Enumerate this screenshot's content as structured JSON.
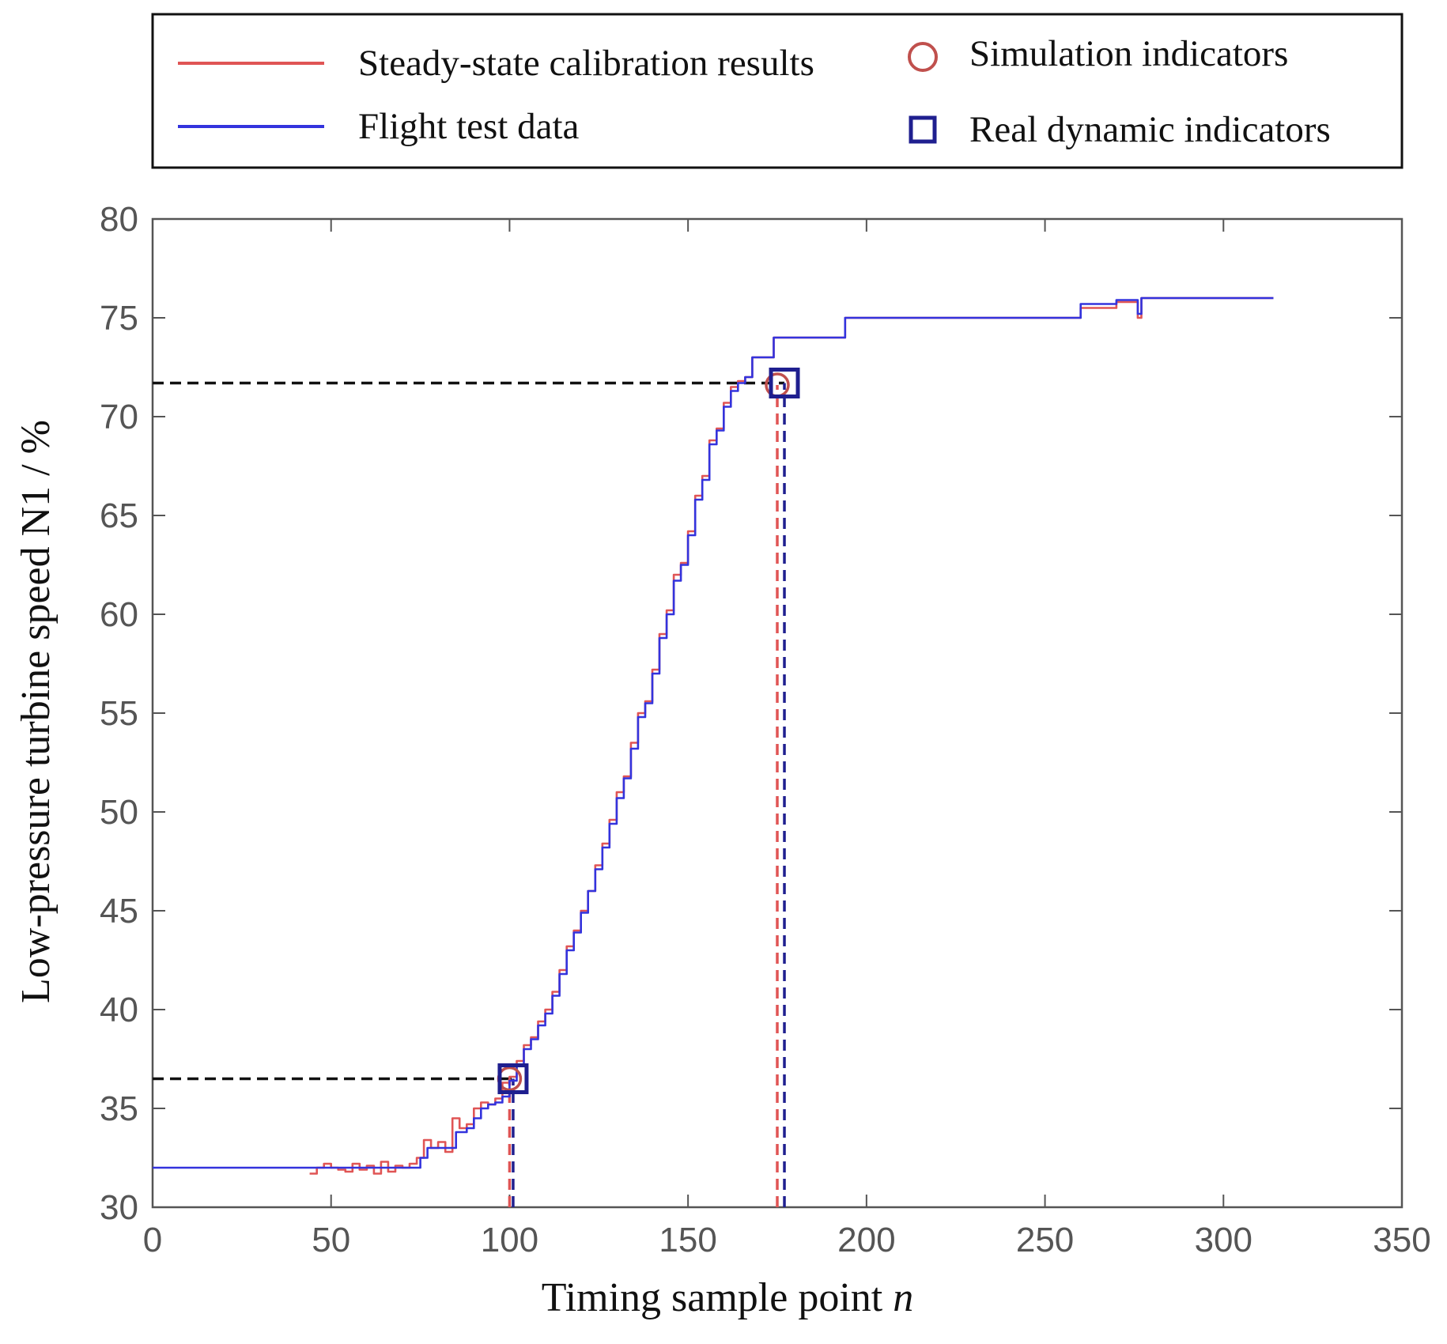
{
  "chart_data": {
    "type": "line",
    "title": "",
    "xlabel": "Timing sample point",
    "xlabel_var": "n",
    "ylabel": "Low-pressure turbine speed N1 / %",
    "xlim": [
      0,
      350
    ],
    "ylim": [
      30,
      80
    ],
    "xticks": [
      0,
      50,
      100,
      150,
      200,
      250,
      300,
      350
    ],
    "yticks": [
      30,
      35,
      40,
      45,
      50,
      55,
      60,
      65,
      70,
      75,
      80
    ],
    "xtick_labels": [
      "0",
      "50",
      "100",
      "150",
      "200",
      "250",
      "300",
      "350"
    ],
    "ytick_labels": [
      "30",
      "35",
      "40",
      "45",
      "50",
      "55",
      "60",
      "65",
      "70",
      "75",
      "80"
    ],
    "grid": false,
    "legend": {
      "placement": "top, outside plot",
      "entries": [
        {
          "label": "Steady-state calibration results",
          "marker": "line",
          "color": "#e05555"
        },
        {
          "label": "Flight test data",
          "marker": "line",
          "color": "#3333dd"
        },
        {
          "label": "Simulation indicators",
          "marker": "circle",
          "color": "#c0504d"
        },
        {
          "label": "Real dynamic indicators",
          "marker": "square",
          "color": "#1f1f8f"
        }
      ]
    },
    "series": [
      {
        "name": "Steady-state calibration results",
        "color": "#e05555",
        "x": [
          44,
          46,
          48,
          50,
          52,
          54,
          56,
          58,
          60,
          62,
          64,
          66,
          68,
          70,
          72,
          74,
          76,
          78,
          80,
          82,
          84,
          86,
          88,
          90,
          92,
          94,
          96,
          98,
          100,
          102,
          104,
          106,
          108,
          110,
          112,
          114,
          116,
          118,
          120,
          122,
          124,
          126,
          128,
          130,
          132,
          134,
          136,
          138,
          140,
          142,
          144,
          146,
          148,
          150,
          152,
          154,
          156,
          158,
          160,
          162,
          164,
          166,
          168,
          170,
          172,
          174,
          176,
          178,
          180,
          185,
          190,
          194,
          195,
          200,
          210,
          220,
          228,
          229,
          240,
          250,
          260,
          270,
          276,
          277,
          278,
          279,
          280,
          290,
          300,
          314
        ],
        "y": [
          31.7,
          32.0,
          32.2,
          32.0,
          31.9,
          31.8,
          32.2,
          31.9,
          32.1,
          31.7,
          32.3,
          31.8,
          32.1,
          32.0,
          32.2,
          32.5,
          33.4,
          33.0,
          33.3,
          32.8,
          34.5,
          34.0,
          34.2,
          35.0,
          35.3,
          35.2,
          35.5,
          36.3,
          36.6,
          37.4,
          38.2,
          38.6,
          39.4,
          40.0,
          40.9,
          42.0,
          43.2,
          44.0,
          45.0,
          46.0,
          47.3,
          48.4,
          49.6,
          51.0,
          51.8,
          53.5,
          55.0,
          55.6,
          57.2,
          59.0,
          60.2,
          62.0,
          62.6,
          64.2,
          66.0,
          67.0,
          68.8,
          69.4,
          70.7,
          71.5,
          71.8,
          72.0,
          73.0,
          73.0,
          73.0,
          74.0,
          74.0,
          74.0,
          74.0,
          74.0,
          74.0,
          75.0,
          75.0,
          75.0,
          75.0,
          75.0,
          75.0,
          75.0,
          75.0,
          75.0,
          75.5,
          75.8,
          75.0,
          76.0,
          76.0,
          76.0,
          76.0,
          76.0,
          76.0,
          76.0
        ]
      },
      {
        "name": "Flight test data",
        "color": "#3333dd",
        "x": [
          0,
          10,
          20,
          30,
          40,
          45,
          50,
          55,
          60,
          65,
          70,
          73,
          75,
          77,
          80,
          83,
          85,
          88,
          90,
          92,
          94,
          96,
          98,
          100,
          102,
          104,
          106,
          108,
          110,
          112,
          114,
          116,
          118,
          120,
          122,
          124,
          126,
          128,
          130,
          132,
          134,
          136,
          138,
          140,
          142,
          144,
          146,
          148,
          150,
          152,
          154,
          156,
          158,
          160,
          162,
          164,
          166,
          168,
          170,
          172,
          174,
          176,
          178,
          180,
          185,
          190,
          194,
          195,
          200,
          210,
          220,
          228,
          229,
          240,
          250,
          260,
          270,
          276,
          277,
          278,
          279,
          280,
          290,
          300,
          314
        ],
        "y": [
          32.0,
          32.0,
          32.0,
          32.0,
          32.0,
          32.0,
          32.0,
          32.0,
          32.0,
          32.0,
          32.0,
          32.0,
          32.5,
          33.0,
          33.0,
          33.0,
          33.8,
          34.0,
          34.5,
          35.0,
          35.2,
          35.3,
          35.6,
          36.4,
          37.2,
          38.0,
          38.5,
          39.2,
          39.8,
          40.7,
          41.8,
          43.0,
          43.9,
          44.9,
          46.0,
          47.1,
          48.2,
          49.4,
          50.7,
          51.7,
          53.2,
          54.8,
          55.5,
          57.0,
          58.8,
          60.0,
          61.7,
          62.5,
          64.0,
          65.8,
          66.8,
          68.6,
          69.3,
          70.5,
          71.3,
          71.7,
          72.0,
          73.0,
          73.0,
          73.0,
          74.0,
          74.0,
          74.0,
          74.0,
          74.0,
          74.0,
          75.0,
          75.0,
          75.0,
          75.0,
          75.0,
          75.0,
          75.0,
          75.0,
          75.0,
          75.7,
          75.9,
          75.2,
          76.0,
          76.0,
          76.0,
          76.0,
          76.0,
          76.0,
          76.0
        ]
      }
    ],
    "markers": [
      {
        "name": "Simulation indicators",
        "shape": "circle",
        "color": "#c0504d",
        "points": [
          [
            100,
            36.5
          ],
          [
            175,
            71.6
          ]
        ]
      },
      {
        "name": "Real dynamic indicators",
        "shape": "square",
        "color": "#1f1f8f",
        "points": [
          [
            101,
            36.5
          ],
          [
            177,
            71.7
          ]
        ]
      }
    ],
    "reference_lines": [
      {
        "type": "horizontal",
        "y": 36.5,
        "x_from": 0,
        "x_to": 101,
        "color": "#111111"
      },
      {
        "type": "horizontal",
        "y": 71.7,
        "x_from": 0,
        "x_to": 177,
        "color": "#111111"
      },
      {
        "type": "vertical",
        "x": 100,
        "y_from": 30,
        "y_to": 36.5,
        "color": "#e05555"
      },
      {
        "type": "vertical",
        "x": 101,
        "y_from": 30,
        "y_to": 36.5,
        "color": "#1f1f8f"
      },
      {
        "type": "vertical",
        "x": 175,
        "y_from": 30,
        "y_to": 71.6,
        "color": "#e05555"
      },
      {
        "type": "vertical",
        "x": 177,
        "y_from": 30,
        "y_to": 71.7,
        "color": "#1f1f8f"
      }
    ]
  }
}
